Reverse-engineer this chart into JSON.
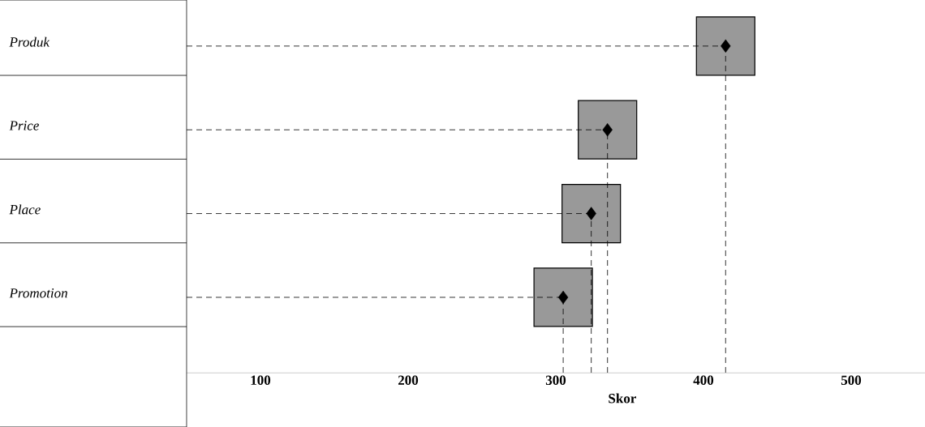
{
  "chart_data": {
    "type": "lollipop",
    "line_style": "dashed",
    "ref_lines": [
      {
        "axis": "x",
        "value": 415,
        "line_style": "dashed"
      },
      {
        "axis": "x",
        "value": 335,
        "line_style": "dashed"
      },
      {
        "axis": "x",
        "value": 324,
        "line_style": "dashed"
      },
      {
        "axis": "x",
        "value": 305,
        "line_style": "dashed"
      }
    ],
    "orientation": "horizontal",
    "categories": [
      "Produk",
      "Price",
      "Place",
      "Promotion"
    ],
    "values": [
      415,
      335,
      324,
      305
    ],
    "color": "#000000",
    "marker": "diamond",
    "xlabel": "Skor",
    "xlim": [
      50,
      550
    ],
    "xticks": [
      100,
      200,
      300,
      400,
      500
    ]
  }
}
